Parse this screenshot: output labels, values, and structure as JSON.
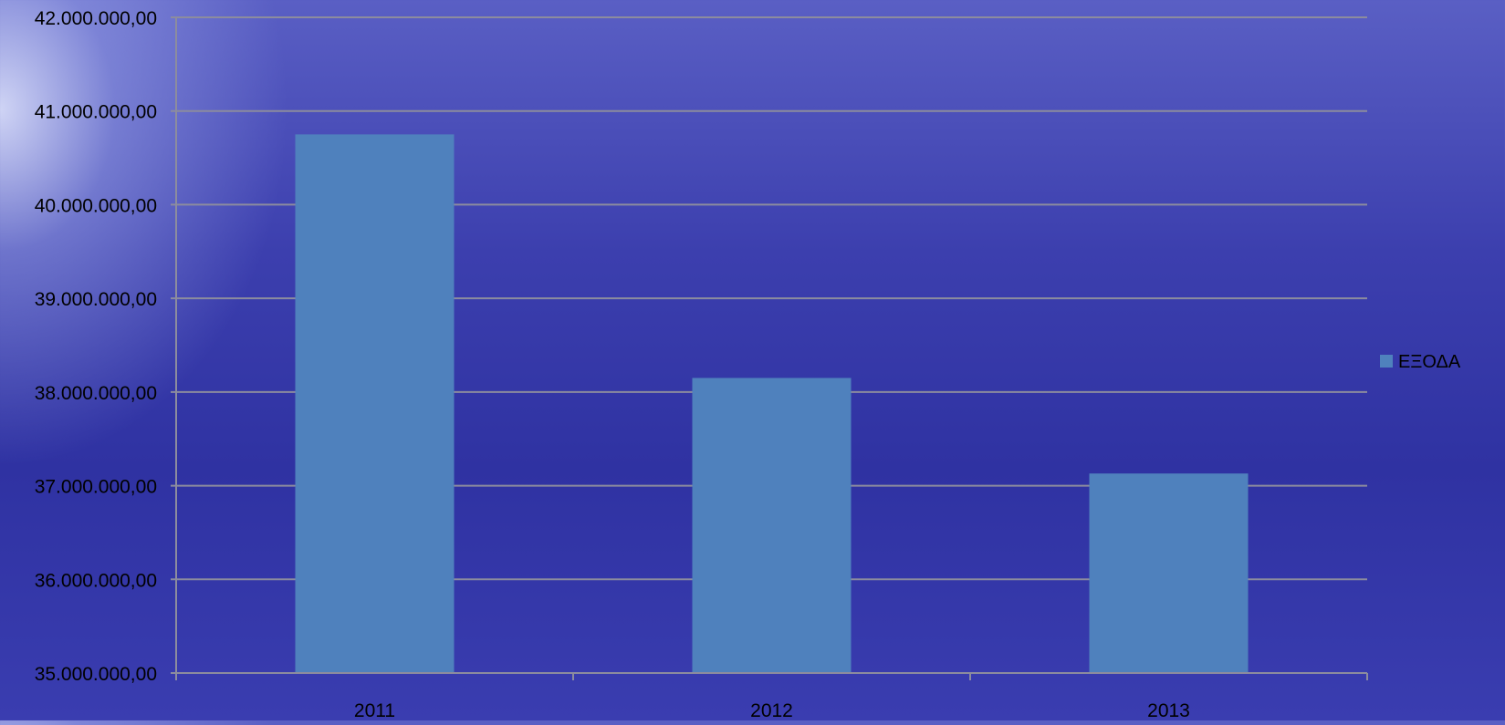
{
  "chart_data": {
    "type": "bar",
    "title": "",
    "xlabel": "",
    "ylabel": "",
    "categories": [
      "2011",
      "2012",
      "2013"
    ],
    "series": [
      {
        "name": "ΕΞΟΔΑ",
        "values": [
          40750000,
          38150000,
          37130000
        ]
      }
    ],
    "ylim": [
      35000000,
      42000000
    ],
    "yticks": [
      35000000,
      36000000,
      37000000,
      38000000,
      39000000,
      40000000,
      41000000,
      42000000
    ],
    "ytick_labels": [
      "35.000.000,00",
      "36.000.000,00",
      "37.000.000,00",
      "38.000.000,00",
      "39.000.000,00",
      "40.000.000,00",
      "41.000.000,00",
      "42.000.000,00"
    ],
    "grid": true,
    "legend_position": "right",
    "colors": {
      "bar": "#4f81bd",
      "grid": "#8c8c9e",
      "axis": "#8c8c9e",
      "text": "#000000"
    }
  }
}
